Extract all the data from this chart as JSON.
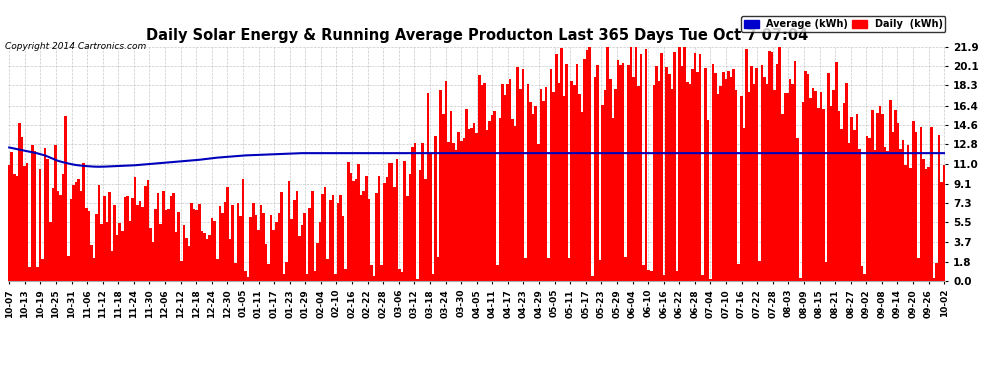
{
  "title": "Daily Solar Energy & Running Average Producton Last 365 Days Tue Oct 7 07:04",
  "copyright": "Copyright 2014 Cartronics.com",
  "yticks": [
    0.0,
    1.8,
    3.7,
    5.5,
    7.3,
    9.1,
    11.0,
    12.8,
    14.6,
    16.4,
    18.3,
    20.1,
    21.9
  ],
  "ymax": 21.9,
  "ymin": 0.0,
  "bar_color": "#ff0000",
  "avg_line_color": "#0000bb",
  "background_color": "#ffffff",
  "plot_bg_color": "#ffffff",
  "grid_color": "#bbbbbb",
  "legend_avg_color": "#0000cc",
  "legend_daily_color": "#ff0000",
  "legend_avg_label": "Average (kWh)",
  "legend_daily_label": "Daily  (kWh)",
  "x_tick_labels": [
    "10-07",
    "10-13",
    "10-19",
    "10-25",
    "10-31",
    "11-06",
    "11-12",
    "11-18",
    "11-24",
    "11-30",
    "12-06",
    "12-12",
    "12-18",
    "12-24",
    "12-30",
    "01-05",
    "01-11",
    "01-17",
    "01-23",
    "01-29",
    "02-04",
    "02-10",
    "02-16",
    "02-22",
    "02-28",
    "03-06",
    "03-12",
    "03-18",
    "03-24",
    "03-30",
    "04-05",
    "04-11",
    "04-17",
    "04-23",
    "04-29",
    "05-05",
    "05-11",
    "05-17",
    "05-23",
    "05-29",
    "06-04",
    "06-10",
    "06-16",
    "06-22",
    "06-28",
    "07-04",
    "07-10",
    "07-16",
    "07-22",
    "07-28",
    "08-03",
    "08-09",
    "08-15",
    "08-21",
    "08-27",
    "09-02",
    "09-08",
    "09-14",
    "09-20",
    "09-26",
    "10-02"
  ],
  "num_days": 365,
  "avg_line": [
    12.5,
    12.45,
    12.4,
    12.35,
    12.3,
    12.25,
    12.2,
    12.15,
    12.1,
    12.05,
    12.0,
    11.95,
    11.88,
    11.82,
    11.75,
    11.65,
    11.55,
    11.45,
    11.35,
    11.25,
    11.18,
    11.12,
    11.06,
    11.0,
    10.95,
    10.9,
    10.86,
    10.83,
    10.8,
    10.78,
    10.76,
    10.74,
    10.72,
    10.71,
    10.7,
    10.7,
    10.7,
    10.71,
    10.72,
    10.73,
    10.74,
    10.75,
    10.76,
    10.77,
    10.78,
    10.79,
    10.8,
    10.81,
    10.82,
    10.84,
    10.86,
    10.88,
    10.9,
    10.92,
    10.94,
    10.96,
    10.98,
    11.0,
    11.02,
    11.04,
    11.06,
    11.08,
    11.1,
    11.12,
    11.14,
    11.16,
    11.18,
    11.2,
    11.22,
    11.24,
    11.26,
    11.28,
    11.3,
    11.32,
    11.35,
    11.38,
    11.4,
    11.43,
    11.46,
    11.49,
    11.52,
    11.55,
    11.57,
    11.59,
    11.61,
    11.63,
    11.65,
    11.67,
    11.69,
    11.71,
    11.73,
    11.75,
    11.76,
    11.77,
    11.78,
    11.79,
    11.8,
    11.81,
    11.82,
    11.83,
    11.84,
    11.85,
    11.86,
    11.87,
    11.88,
    11.88,
    11.89,
    11.9,
    11.91,
    11.92,
    11.93,
    11.94,
    11.95,
    11.96,
    11.97,
    11.97,
    11.97,
    11.97,
    11.97,
    11.97,
    11.97,
    11.97,
    11.97,
    11.97,
    11.97,
    11.97,
    11.97,
    11.97,
    11.97,
    11.97,
    11.97,
    11.97,
    11.97,
    11.97,
    11.97,
    11.97,
    11.97,
    11.97,
    11.97,
    11.97,
    11.97,
    11.97,
    11.97,
    11.97,
    11.97,
    11.97,
    11.97,
    11.97,
    11.97,
    11.97,
    11.97,
    11.97,
    11.97,
    11.97,
    11.97,
    11.97,
    11.97,
    11.97,
    11.97,
    11.97,
    11.97,
    11.97,
    11.97,
    11.97,
    11.97,
    11.97,
    11.97,
    11.97,
    11.97,
    11.97,
    11.97,
    11.97,
    11.97,
    11.97,
    11.97,
    11.97,
    11.97,
    11.97,
    11.97,
    11.97,
    11.97,
    11.97,
    11.97,
    11.97,
    11.97,
    11.97,
    11.97,
    11.97,
    11.97,
    11.97,
    11.97,
    11.97,
    11.97,
    11.97,
    11.97,
    11.97,
    11.97,
    11.97,
    11.97,
    11.97,
    11.97,
    11.97,
    11.97,
    11.97,
    11.97,
    11.97,
    11.97,
    11.97,
    11.97,
    11.97,
    11.97,
    11.97,
    11.97,
    11.97,
    11.97,
    11.97,
    11.97,
    11.97,
    11.97,
    11.97,
    11.97,
    11.97,
    11.97,
    11.97,
    11.97,
    11.97,
    11.97,
    11.97,
    11.97,
    11.97,
    11.97,
    11.97,
    11.97,
    11.97,
    11.97,
    11.97,
    11.97,
    11.97,
    11.97,
    11.97,
    11.97,
    11.97,
    11.97,
    11.97,
    11.97,
    11.97,
    11.97,
    11.97,
    11.97,
    11.97,
    11.97,
    11.97,
    11.97,
    11.97,
    11.97,
    11.97,
    11.97,
    11.97,
    11.97,
    11.97,
    11.97,
    11.97,
    11.97,
    11.97,
    11.97,
    11.97,
    11.97,
    11.97,
    11.97,
    11.97,
    11.97,
    11.97,
    11.97,
    11.97,
    11.97,
    11.97,
    11.97,
    11.97,
    11.97,
    11.97,
    11.97,
    11.97,
    11.97,
    11.97,
    11.97,
    11.97,
    11.97,
    11.97,
    11.97,
    11.97,
    11.97,
    11.97,
    11.97,
    11.97,
    11.97,
    11.97,
    11.97,
    11.97,
    11.97,
    11.97,
    11.97,
    11.97,
    11.97,
    11.97,
    11.97,
    11.97,
    11.97,
    11.97,
    11.97,
    11.97,
    11.97,
    11.97,
    11.97,
    11.97,
    11.97,
    11.97,
    11.97,
    11.97,
    11.97,
    11.97,
    11.97,
    11.97,
    11.97,
    11.97,
    11.97,
    11.97,
    11.97,
    11.97,
    11.97,
    11.97,
    11.97,
    11.97,
    11.97,
    11.97,
    11.97,
    11.97,
    11.97,
    11.97,
    11.97,
    11.97,
    11.97,
    11.97,
    11.97,
    11.97,
    11.97,
    11.97,
    11.97,
    11.97,
    11.97,
    11.97,
    11.97,
    11.97,
    11.97,
    11.97,
    11.97,
    11.97,
    11.97,
    11.97,
    11.97,
    11.97,
    11.97,
    11.97,
    11.97,
    11.97,
    11.97
  ]
}
